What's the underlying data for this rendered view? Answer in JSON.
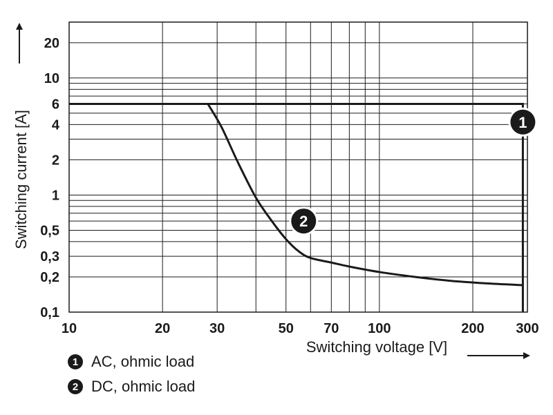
{
  "chart_data": {
    "type": "line",
    "xlabel": "Switching voltage [V]",
    "ylabel": "Switching current [A]",
    "x_scale": "log",
    "y_scale": "log",
    "xlim": [
      10,
      300
    ],
    "ylim": [
      0.1,
      30
    ],
    "grid": true,
    "x_major_ticks": [
      10,
      20,
      30,
      50,
      70,
      100,
      200,
      300
    ],
    "x_minor_ticks": [
      40,
      60,
      80,
      90
    ],
    "x_tick_labels": [
      "10",
      "20",
      "30",
      "50",
      "70",
      "100",
      "200",
      "300"
    ],
    "y_major_ticks": [
      0.1,
      0.2,
      0.3,
      0.5,
      1,
      2,
      4,
      6,
      10,
      20
    ],
    "y_minor_ticks": [
      0.4,
      0.6,
      0.7,
      0.8,
      0.9,
      3,
      5,
      7,
      8,
      9
    ],
    "y_tick_labels": [
      "0,1",
      "0,2",
      "0,3",
      "0,5",
      "1",
      "2",
      "4",
      "6",
      "10",
      "20"
    ],
    "series": [
      {
        "name": "AC, ohmic load",
        "marker": "1",
        "marker_at": [
          290,
          4.2
        ],
        "x": [
          10,
          290,
          290
        ],
        "y": [
          6,
          6,
          0.1
        ]
      },
      {
        "name": "DC, ohmic load",
        "marker": "2",
        "marker_at": [
          57,
          0.6
        ],
        "x": [
          28,
          31,
          35,
          40,
          45,
          50,
          55,
          60,
          70,
          80,
          100,
          130,
          170,
          230,
          290
        ],
        "y": [
          6,
          3.8,
          1.9,
          0.95,
          0.6,
          0.42,
          0.33,
          0.29,
          0.265,
          0.245,
          0.22,
          0.2,
          0.185,
          0.175,
          0.17
        ]
      }
    ],
    "legend": {
      "placement": "bottom-left",
      "items": [
        {
          "badge": "1",
          "label": "AC, ohmic load"
        },
        {
          "badge": "2",
          "label": "DC, ohmic load"
        }
      ]
    }
  }
}
